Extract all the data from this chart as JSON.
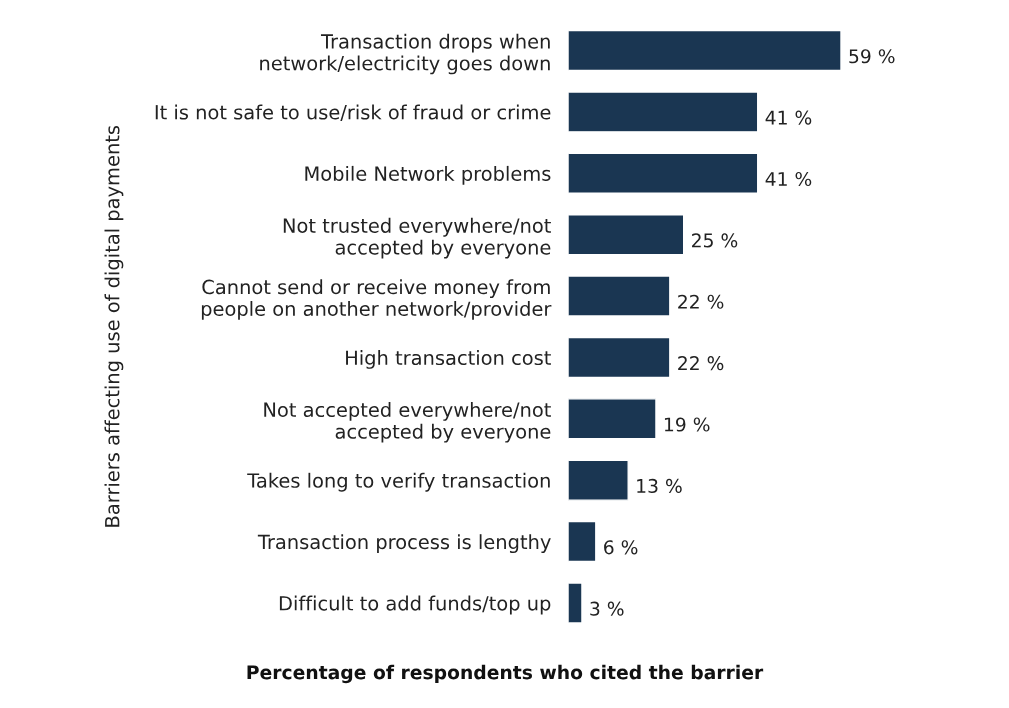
{
  "chart_data": {
    "type": "bar",
    "orientation": "horizontal",
    "xlabel": "Percentage of respondents who cited the barrier",
    "ylabel": "Barriers affecting use of digital payments",
    "categories": [
      "Transaction drops when\nnetwork/electricity goes down",
      "It is not safe to use/risk of fraud or crime",
      "Mobile Network problems",
      "Not trusted everywhere/not\naccepted by everyone",
      "Cannot send or receive money from\npeople on another network/provider",
      "High transaction cost",
      "Not accepted everywhere/not\naccepted by everyone",
      "Takes long to verify transaction",
      "Transaction process is lengthy",
      "Difficult to add funds/top up"
    ],
    "values": [
      59,
      41,
      41,
      25,
      22,
      22,
      19,
      13,
      6,
      3
    ],
    "value_labels": [
      "59 %",
      "41 %",
      "41 %",
      "25 %",
      "22 %",
      "22 %",
      "19 %",
      "13 %",
      "6 %",
      "3 %"
    ],
    "color": "#1a3652",
    "grid": false
  }
}
